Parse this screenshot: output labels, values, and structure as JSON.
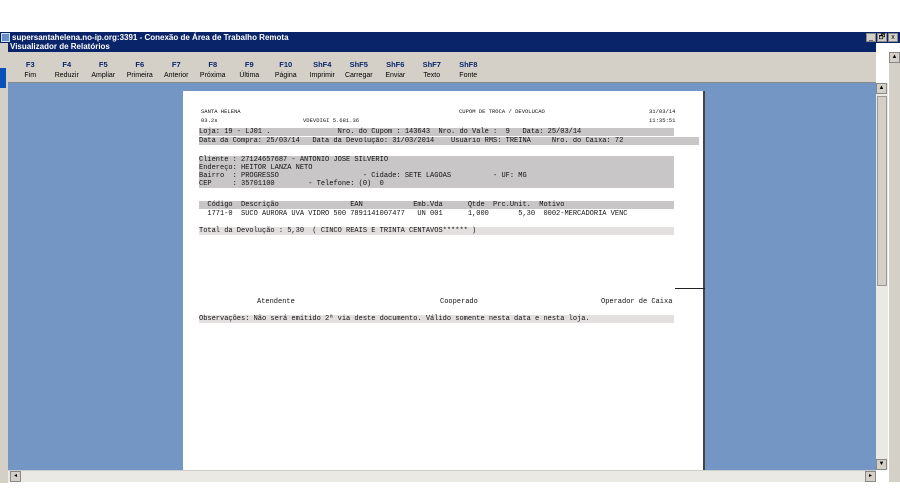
{
  "window": {
    "title": "supersantahelena.no-ip.org:3391 - Conexão de Área de Trabalho Remota",
    "controls": [
      "_",
      "🗗",
      "x"
    ]
  },
  "app": {
    "title": "Visualizador de Relatórios"
  },
  "toolbar": [
    {
      "key": "F3",
      "label": "Fim"
    },
    {
      "key": "F4",
      "label": "Reduzir"
    },
    {
      "key": "F5",
      "label": "Ampliar"
    },
    {
      "key": "F6",
      "label": "Primeira"
    },
    {
      "key": "F7",
      "label": "Anterior"
    },
    {
      "key": "F8",
      "label": "Próxima"
    },
    {
      "key": "F9",
      "label": "Última"
    },
    {
      "key": "F10",
      "label": "Página"
    },
    {
      "key": "ShF4",
      "label": "Imprimir"
    },
    {
      "key": "ShF5",
      "label": "Carregar"
    },
    {
      "key": "ShF6",
      "label": "Enviar"
    },
    {
      "key": "ShF7",
      "label": "Texto"
    },
    {
      "key": "ShF8",
      "label": "Fonte"
    }
  ],
  "report": {
    "company": "SANTA HELENA",
    "code": "03.2s",
    "version": "VDEVDIGI 5.681.36",
    "title": "CUPOM DE TROCA / DEVOLUCAO",
    "date": "31/03/14",
    "time": "11:35:51",
    "line1": "Loja: 19 - LJ01 .                Nro. do Cupom : 143643  Nro. do Vale :  9   Data: 25/03/14",
    "line2": "Data da Compra: 25/03/14   Data da Devolução: 31/03/2014    Usuário RMS: TREINA     Nro. do Caixa: 72",
    "client": [
      "Cliente : 27124657687 - ANTONIO JOSE SILVERIO",
      "Endereço: HEITOR LANZA NETO",
      "Bairro  : PROGRESSO                    - Cidade: SETE LAGOAS          - UF: MG",
      "CEP     : 35701100        - Telefone: (0)  0"
    ],
    "table_header": "  Código  Descrição                 EAN            Emb.Vda      Qtde  Prc.Unit.  Motivo",
    "table_rows": [
      "  1771-0  SUCO AURORA UVA VIDRO 500 7891141007477   UN 001      1,000       5,30  0002-MERCADORIA VENC"
    ],
    "total": "Total da Devolução : 5,30  ( CINCO REAIS E TRINTA CENTAVOS****** )",
    "signatures": [
      "Atendente",
      "Cooperado",
      "Operador de Caixa"
    ],
    "observations": "Observações: Não será emitido 2ª via deste documento. Válido somente nesta data e nesta loja."
  }
}
